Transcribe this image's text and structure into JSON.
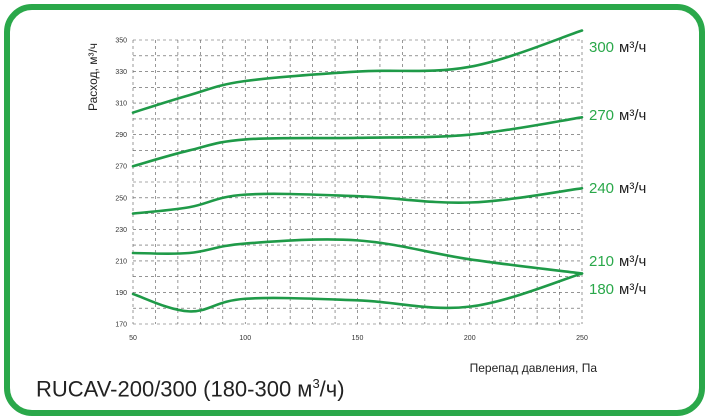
{
  "chart_data": {
    "type": "line",
    "title": "RUCAV-200/300 (180-300 м³/ч)",
    "xlabel": "Перепад давления, Па",
    "ylabel": "Расход, м³/ч",
    "xlim": [
      50,
      250
    ],
    "ylim": [
      170,
      350
    ],
    "x_ticks": [
      50,
      100,
      150,
      200,
      250
    ],
    "y_ticks": [
      170,
      190,
      210,
      230,
      250,
      270,
      290,
      310,
      330,
      350
    ],
    "grid": true,
    "series": [
      {
        "name": "300 м³/ч",
        "x": [
          50,
          75,
          100,
          150,
          200,
          250
        ],
        "y": [
          304,
          315,
          324,
          330,
          333,
          356
        ]
      },
      {
        "name": "270 м³/ч",
        "x": [
          50,
          75,
          100,
          150,
          200,
          250
        ],
        "y": [
          270,
          280,
          287,
          288,
          290,
          301
        ]
      },
      {
        "name": "240 м³/ч",
        "x": [
          50,
          75,
          100,
          150,
          200,
          250
        ],
        "y": [
          240,
          244,
          252,
          251,
          247,
          256
        ]
      },
      {
        "name": "210 м³/ч",
        "x": [
          50,
          75,
          100,
          150,
          200,
          250
        ],
        "y": [
          215,
          215,
          221,
          223,
          211,
          202
        ]
      },
      {
        "name": "180 м³/ч",
        "x": [
          50,
          75,
          100,
          150,
          200,
          250
        ],
        "y": [
          189,
          178,
          186,
          185,
          181,
          202
        ]
      }
    ]
  },
  "labels": {
    "title_main": "RUCAV-200/300 (180-300 м",
    "title_sup": "3",
    "title_end": "/ч)"
  },
  "colors": {
    "frame": "#2aa84a",
    "line": "#1f9a48",
    "grid": "#555555"
  }
}
